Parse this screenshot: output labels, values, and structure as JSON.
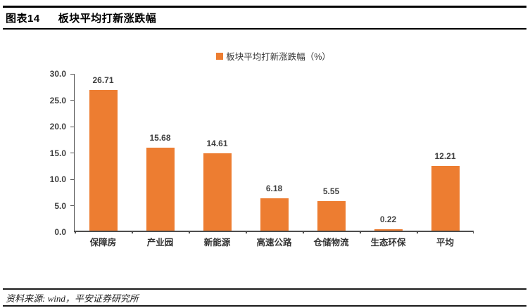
{
  "header": {
    "figure_label": "图表14",
    "title": "板块平均打新涨跌幅"
  },
  "footer": {
    "source": "资料来源: wind，平安证券研究所"
  },
  "chart_data": {
    "type": "bar",
    "legend": "板块平均打新涨跌幅（%）",
    "legend_position": "top-center",
    "categories": [
      "保障房",
      "产业园",
      "新能源",
      "高速公路",
      "仓储物流",
      "生态环保",
      "平均"
    ],
    "values": [
      26.71,
      15.68,
      14.61,
      6.18,
      5.55,
      0.22,
      12.21
    ],
    "value_labels": [
      "26.71",
      "15.68",
      "14.61",
      "6.18",
      "5.55",
      "0.22",
      "12.21"
    ],
    "ylim": [
      0,
      30
    ],
    "yticks": [
      0.0,
      5.0,
      10.0,
      15.0,
      20.0,
      25.0,
      30.0
    ],
    "ytick_labels": [
      "0.0",
      "5.0",
      "10.0",
      "15.0",
      "20.0",
      "25.0",
      "30.0"
    ],
    "grid": false,
    "colors": {
      "bar": "#ED7D31",
      "axis": "#4d4d4d",
      "label": "#404040"
    }
  }
}
